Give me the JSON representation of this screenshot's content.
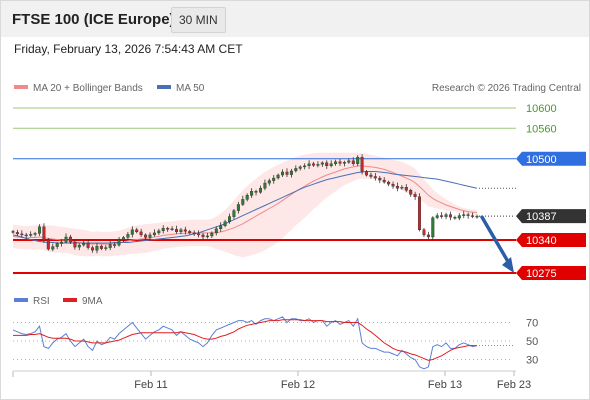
{
  "header": {
    "title": "FTSE 100 (ICE Europe)",
    "interval": "30 MIN"
  },
  "datetime": "Friday, February 13, 2026 7:54:43 AM CET",
  "legend": {
    "ma20_label": "MA 20 + Bollinger Bands",
    "ma50_label": "MA 50",
    "credit": "Research © 2026 Trading Central",
    "rsi_label": "RSI",
    "ma9_label": "9MA"
  },
  "colors": {
    "ma20": "#f08a8a",
    "ma50": "#4a6fb5",
    "bands_fill": "#fde3e3",
    "candle_up": "#2e7d32",
    "candle_down": "#c62828",
    "candle_wick": "#333333",
    "green_level": "#9bc97a",
    "blue_level": "#2f6fe0",
    "red_level": "#e00000",
    "current_tag": "#333333",
    "arrow": "#2a5ea8",
    "rsi": "#5b7fd6",
    "rsi_ma": "#e02020"
  },
  "chart_data": [
    {
      "type": "candlestick",
      "title": "FTSE 100 (ICE Europe)",
      "timeframe": "30 MIN",
      "x_ticks": [
        "Feb 11",
        "Feb 12",
        "Feb 13",
        "Feb 23"
      ],
      "ylim": [
        10260,
        10620
      ],
      "levels": [
        {
          "value": 10600,
          "label": "10600",
          "style": "resistance-green"
        },
        {
          "value": 10560,
          "label": "10560",
          "style": "resistance-green"
        },
        {
          "value": 10500,
          "label": "10500",
          "style": "resistance-blue"
        },
        {
          "value": 10387,
          "label": "10387",
          "style": "current"
        },
        {
          "value": 10340,
          "label": "10340",
          "style": "support-red"
        },
        {
          "value": 10275,
          "label": "10275",
          "style": "support-red"
        }
      ],
      "last_price": 10387,
      "projection": {
        "from": 10385,
        "to": 10275,
        "direction": "down"
      },
      "close": [
        10355,
        10352,
        10350,
        10349,
        10351,
        10353,
        10366,
        10340,
        10322,
        10327,
        10333,
        10336,
        10346,
        10336,
        10326,
        10330,
        10334,
        10325,
        10320,
        10328,
        10323,
        10325,
        10331,
        10330,
        10340,
        10345,
        10351,
        10360,
        10356,
        10350,
        10345,
        10350,
        10354,
        10358,
        10363,
        10362,
        10361,
        10356,
        10360,
        10357,
        10354,
        10352,
        10350,
        10346,
        10348,
        10354,
        10362,
        10368,
        10376,
        10386,
        10398,
        10410,
        10420,
        10428,
        10436,
        10434,
        10442,
        10452,
        10457,
        10462,
        10468,
        10474,
        10469,
        10476,
        10481,
        10484,
        10486,
        10490,
        10487,
        10489,
        10492,
        10486,
        10490,
        10494,
        10491,
        10493,
        10496,
        10490,
        10503,
        10475,
        10468,
        10465,
        10462,
        10458,
        10454,
        10450,
        10446,
        10442,
        10444,
        10438,
        10430,
        10425,
        10360,
        10350,
        10346,
        10384,
        10388,
        10386,
        10390,
        10385,
        10383,
        10388,
        10390,
        10388,
        10386,
        10387
      ],
      "ma20": [
        10347,
        10346,
        10345,
        10344,
        10345,
        10345,
        10346,
        10345,
        10343,
        10342,
        10341,
        10340,
        10340,
        10338,
        10336,
        10335,
        10334,
        10333,
        10332,
        10333,
        10332,
        10332,
        10332,
        10333,
        10334,
        10336,
        10338,
        10340,
        10341,
        10342,
        10343,
        10344,
        10346,
        10347,
        10349,
        10350,
        10351,
        10352,
        10353,
        10353,
        10354,
        10354,
        10354,
        10354,
        10354,
        10354,
        10354,
        10356,
        10358,
        10361,
        10364,
        10368,
        10372,
        10377,
        10382,
        10387,
        10392,
        10397,
        10402,
        10407,
        10412,
        10418,
        10424,
        10430,
        10436,
        10441,
        10446,
        10451,
        10456,
        10460,
        10464,
        10468,
        10471,
        10474,
        10477,
        10480,
        10482,
        10484,
        10486,
        10486,
        10485,
        10484,
        10483,
        10481,
        10479,
        10476,
        10473,
        10469,
        10466,
        10462,
        10458,
        10453,
        10445,
        10437,
        10428,
        10422,
        10417,
        10413,
        10409,
        10406,
        10403,
        10400,
        10398,
        10396,
        10395,
        10394
      ],
      "band_upper": [
        10370,
        10369,
        10368,
        10367,
        10368,
        10369,
        10371,
        10370,
        10369,
        10368,
        10367,
        10366,
        10365,
        10363,
        10362,
        10361,
        10360,
        10358,
        10356,
        10357,
        10356,
        10356,
        10356,
        10357,
        10358,
        10361,
        10364,
        10367,
        10369,
        10370,
        10371,
        10372,
        10373,
        10374,
        10375,
        10376,
        10377,
        10378,
        10379,
        10379,
        10380,
        10380,
        10380,
        10380,
        10380,
        10382,
        10386,
        10392,
        10399,
        10408,
        10418,
        10428,
        10438,
        10446,
        10454,
        10461,
        10468,
        10474,
        10479,
        10484,
        10488,
        10492,
        10496,
        10500,
        10503,
        10506,
        10508,
        10510,
        10511,
        10512,
        10512,
        10512,
        10512,
        10512,
        10512,
        10512,
        10512,
        10512,
        10512,
        10511,
        10510,
        10508,
        10506,
        10504,
        10502,
        10500,
        10498,
        10496,
        10494,
        10490,
        10486,
        10480,
        10470,
        10460,
        10450,
        10440,
        10432,
        10426,
        10420,
        10415,
        10410,
        10406,
        10403,
        10401,
        10400,
        10399
      ],
      "band_lower": [
        10324,
        10323,
        10322,
        10321,
        10322,
        10321,
        10321,
        10320,
        10317,
        10316,
        10315,
        10314,
        10315,
        10313,
        10310,
        10309,
        10308,
        10308,
        10308,
        10309,
        10308,
        10308,
        10308,
        10309,
        10310,
        10311,
        10312,
        10313,
        10313,
        10314,
        10315,
        10316,
        10319,
        10320,
        10323,
        10324,
        10325,
        10326,
        10327,
        10327,
        10328,
        10328,
        10328,
        10328,
        10328,
        10326,
        10322,
        10320,
        10317,
        10314,
        10310,
        10308,
        10306,
        10308,
        10310,
        10313,
        10316,
        10320,
        10325,
        10330,
        10336,
        10344,
        10352,
        10360,
        10369,
        10376,
        10384,
        10392,
        10401,
        10408,
        10416,
        10424,
        10430,
        10436,
        10442,
        10448,
        10452,
        10456,
        10460,
        10461,
        10460,
        10460,
        10460,
        10458,
        10456,
        10452,
        10448,
        10442,
        10438,
        10434,
        10430,
        10426,
        10420,
        10414,
        10406,
        10404,
        10402,
        10400,
        10398,
        10397,
        10396,
        10394,
        10393,
        10391,
        10390,
        10389
      ],
      "ma50": [
        10350,
        10348,
        10346,
        10343,
        10341,
        10339,
        10337,
        10336,
        10335,
        10335,
        10334,
        10334,
        10334,
        10334,
        10334,
        10334,
        10334,
        10334,
        10334,
        10334,
        10334,
        10334,
        10334,
        10335,
        10335,
        10335,
        10335,
        10336,
        10337,
        10338,
        10339,
        10340,
        10341,
        10342,
        10343,
        10344,
        10345,
        10346,
        10347,
        10348,
        10350,
        10352,
        10354,
        10357,
        10360,
        10363,
        10366,
        10369,
        10372,
        10376,
        10380,
        10384,
        10388,
        10392,
        10396,
        10400,
        10404,
        10408,
        10412,
        10416,
        10420,
        10424,
        10428,
        10432,
        10436,
        10440,
        10444,
        10447,
        10450,
        10453,
        10456,
        10459,
        10461,
        10463,
        10465,
        10467,
        10469,
        10471,
        10473,
        10474,
        10475,
        10475,
        10475,
        10474,
        10473,
        10472,
        10470,
        10469,
        10468,
        10467,
        10466,
        10465,
        10464,
        10463,
        10462,
        10461,
        10460,
        10458,
        10456,
        10454,
        10452,
        10450,
        10448,
        10446,
        10444,
        10442
      ]
    },
    {
      "type": "line",
      "title": "RSI",
      "series": [
        {
          "name": "RSI"
        },
        {
          "name": "9MA"
        }
      ],
      "y_ticks": [
        70,
        50,
        30
      ],
      "ylim": [
        15,
        85
      ],
      "rsi": [
        62,
        60,
        58,
        57,
        58,
        60,
        66,
        44,
        42,
        48,
        52,
        54,
        58,
        50,
        44,
        48,
        52,
        44,
        40,
        50,
        46,
        48,
        54,
        52,
        58,
        62,
        66,
        70,
        64,
        58,
        52,
        56,
        60,
        62,
        66,
        64,
        62,
        56,
        60,
        56,
        52,
        50,
        48,
        44,
        48,
        56,
        62,
        64,
        66,
        68,
        70,
        72,
        72,
        70,
        72,
        68,
        72,
        74,
        74,
        72,
        74,
        76,
        70,
        74,
        74,
        72,
        72,
        74,
        70,
        72,
        72,
        66,
        70,
        72,
        68,
        70,
        72,
        66,
        74,
        48,
        44,
        42,
        42,
        40,
        38,
        38,
        36,
        34,
        40,
        36,
        32,
        30,
        22,
        20,
        22,
        44,
        46,
        44,
        48,
        42,
        42,
        46,
        48,
        46,
        44,
        45
      ],
      "rsi_ma": [
        56,
        56,
        56,
        56,
        57,
        57,
        58,
        56,
        54,
        53,
        53,
        53,
        53,
        52,
        50,
        50,
        50,
        49,
        48,
        48,
        48,
        48,
        49,
        50,
        51,
        53,
        55,
        57,
        58,
        59,
        59,
        59,
        59,
        59,
        59,
        59,
        59,
        59,
        60,
        59,
        58,
        57,
        55,
        53,
        52,
        52,
        53,
        55,
        56,
        58,
        60,
        63,
        65,
        67,
        68,
        69,
        70,
        71,
        72,
        72,
        72,
        73,
        73,
        73,
        73,
        73,
        72,
        72,
        72,
        72,
        72,
        71,
        71,
        71,
        71,
        70,
        70,
        70,
        70,
        67,
        63,
        60,
        56,
        52,
        48,
        45,
        42,
        40,
        39,
        38,
        36,
        35,
        33,
        31,
        29,
        30,
        32,
        34,
        37,
        40,
        42,
        43,
        44,
        45,
        45,
        45
      ]
    }
  ]
}
